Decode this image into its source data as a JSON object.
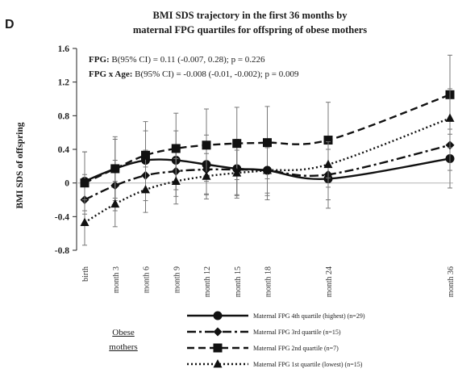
{
  "panel_letter": "D",
  "title_line1": "BMI SDS trajectory in the first 36 months by",
  "title_line2": "maternal FPG quartiles for offspring of obese mothers",
  "stat1": {
    "label": "FPG:",
    "text": "B(95% CI) = 0.11 (-0.007, 0.28); p = 0.226"
  },
  "stat2": {
    "label": "FPG x Age:",
    "text": "B(95% CI) = -0.008 (-0.01, -0.002); p = 0.009"
  },
  "legend_group_line1": "Obese",
  "legend_group_line2": "mothers",
  "chart_data": {
    "type": "line",
    "ylabel": "BMI SDS of offspring",
    "xlabel": "",
    "categories": [
      "birth",
      "month 3",
      "month 6",
      "month 9",
      "month 12",
      "month 15",
      "month 18",
      "month 24",
      "month 36"
    ],
    "x_months": [
      0,
      3,
      6,
      9,
      12,
      15,
      18,
      24,
      36
    ],
    "ylim": [
      -0.8,
      1.6
    ],
    "yticks": [
      "-0.8",
      "-0.4",
      "0",
      "0.4",
      "0.8",
      "1.2",
      "1.6"
    ],
    "yticks_values": [
      -0.8,
      -0.4,
      0,
      0.4,
      0.8,
      1.2,
      1.6
    ],
    "grid": false,
    "legend_position": "bottom",
    "series": [
      {
        "name": "Maternal FPG 4th quartile (highest) (n=29)",
        "marker": "circle",
        "dash": "solid",
        "color": "#111111",
        "values": [
          0.02,
          0.17,
          0.27,
          0.27,
          0.22,
          0.17,
          0.15,
          0.05,
          0.29
        ],
        "error": [
          0.35,
          0.35,
          0.35,
          0.35,
          0.35,
          0.35,
          0.35,
          0.35,
          0.35
        ]
      },
      {
        "name": "Maternal FPG 3rd quartile (n=15)",
        "marker": "diamond",
        "dash": "dashdot",
        "color": "#111111",
        "values": [
          -0.2,
          -0.03,
          0.09,
          0.14,
          0.16,
          0.16,
          0.15,
          0.1,
          0.45
        ],
        "error": [
          0.3,
          0.3,
          0.3,
          0.3,
          0.3,
          0.3,
          0.3,
          0.3,
          0.3
        ]
      },
      {
        "name": "Maternal FPG 2nd quartile (n=7)",
        "marker": "square",
        "dash": "dashed",
        "color": "#111111",
        "values": [
          0.0,
          0.17,
          0.33,
          0.41,
          0.45,
          0.47,
          0.48,
          0.51,
          1.05
        ],
        "error": [
          0.37,
          0.38,
          0.4,
          0.42,
          0.43,
          0.43,
          0.43,
          0.45,
          0.47
        ]
      },
      {
        "name": "Maternal FPG 1st quartile (lowest) (n=15)",
        "marker": "triangle",
        "dash": "dotted",
        "color": "#111111",
        "values": [
          -0.47,
          -0.25,
          -0.08,
          0.02,
          0.08,
          0.12,
          0.15,
          0.22,
          0.77
        ],
        "error": [
          0.27,
          0.27,
          0.27,
          0.27,
          0.27,
          0.27,
          0.27,
          0.27,
          0.35
        ]
      }
    ]
  }
}
